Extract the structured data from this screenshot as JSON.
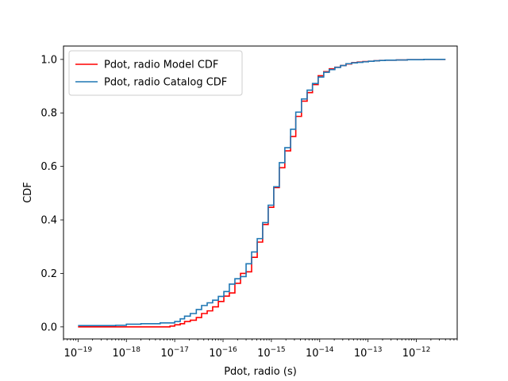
{
  "chart_data": {
    "type": "line",
    "title": "",
    "xlabel": "Pdot, radio (s)",
    "ylabel": "CDF",
    "xscale": "log",
    "xlim": [
      5e-20,
      7e-12
    ],
    "ylim": [
      -0.045,
      1.05
    ],
    "x_ticks": [
      {
        "value": 1e-19,
        "base": "10",
        "exp": "−19"
      },
      {
        "value": 1e-18,
        "base": "10",
        "exp": "−18"
      },
      {
        "value": 1e-17,
        "base": "10",
        "exp": "−17"
      },
      {
        "value": 1e-16,
        "base": "10",
        "exp": "−16"
      },
      {
        "value": 1e-15,
        "base": "10",
        "exp": "−15"
      },
      {
        "value": 1e-14,
        "base": "10",
        "exp": "−14"
      },
      {
        "value": 1e-13,
        "base": "10",
        "exp": "−13"
      },
      {
        "value": 1e-12,
        "base": "10",
        "exp": "−12"
      }
    ],
    "y_ticks": [
      {
        "value": 0.0,
        "label": "0.0"
      },
      {
        "value": 0.2,
        "label": "0.2"
      },
      {
        "value": 0.4,
        "label": "0.4"
      },
      {
        "value": 0.6,
        "label": "0.6"
      },
      {
        "value": 0.8,
        "label": "0.8"
      },
      {
        "value": 1.0,
        "label": "1.0"
      }
    ],
    "grid": false,
    "legend_position": "upper-left",
    "series": [
      {
        "name": "Pdot, radio Model CDF",
        "color": "#ff0000",
        "step": "post",
        "x": [
          1e-19,
          8e-18,
          1e-17,
          1.3e-17,
          1.6e-17,
          2.1e-17,
          2.8e-17,
          3.6e-17,
          4.7e-17,
          6.1e-17,
          8e-17,
          1.04e-16,
          1.35e-16,
          1.76e-16,
          2.3e-16,
          3e-16,
          3.9e-16,
          5.1e-16,
          6.6e-16,
          8.6e-16,
          1.12e-15,
          1.46e-15,
          1.9e-15,
          2.5e-15,
          3.2e-15,
          4.2e-15,
          5.5e-15,
          7.1e-15,
          9.3e-15,
          1.21e-14,
          1.58e-14,
          2.06e-14,
          2.7e-14,
          3.5e-14,
          4.6e-14,
          6e-14,
          7.8e-14,
          1.02e-13,
          1.33e-13,
          1.73e-13,
          2.26e-13,
          2.95e-13,
          3.84e-13,
          5e-13,
          6.5e-13,
          8.5e-13,
          1.1e-12,
          1.44e-12,
          1.9e-12,
          2.5e-12,
          4e-12
        ],
        "y": [
          0.0,
          0.003,
          0.008,
          0.012,
          0.02,
          0.025,
          0.035,
          0.05,
          0.06,
          0.075,
          0.095,
          0.115,
          0.127,
          0.163,
          0.2,
          0.206,
          0.26,
          0.317,
          0.383,
          0.447,
          0.521,
          0.595,
          0.658,
          0.712,
          0.787,
          0.844,
          0.876,
          0.906,
          0.939,
          0.954,
          0.965,
          0.971,
          0.977,
          0.983,
          0.988,
          0.99,
          0.992,
          0.993,
          0.995,
          0.996,
          0.997,
          0.997,
          0.998,
          0.998,
          0.999,
          0.999,
          0.999,
          1.0,
          1.0,
          1.0,
          1.0
        ]
      },
      {
        "name": "Pdot, radio Catalog CDF",
        "color": "#1f77b4",
        "step": "post",
        "x": [
          1e-19,
          6e-19,
          1e-18,
          2e-18,
          5e-18,
          1e-17,
          1.3e-17,
          1.6e-17,
          2.1e-17,
          2.8e-17,
          3.6e-17,
          4.7e-17,
          6.1e-17,
          8e-17,
          1.04e-16,
          1.35e-16,
          1.76e-16,
          2.3e-16,
          3e-16,
          3.9e-16,
          5.1e-16,
          6.6e-16,
          8.6e-16,
          1.12e-15,
          1.46e-15,
          1.9e-15,
          2.5e-15,
          3.2e-15,
          4.2e-15,
          5.5e-15,
          7.1e-15,
          9.3e-15,
          1.21e-14,
          1.58e-14,
          2.06e-14,
          2.7e-14,
          3.5e-14,
          4.6e-14,
          6e-14,
          7.8e-14,
          1.02e-13,
          1.33e-13,
          1.73e-13,
          2.26e-13,
          2.95e-13,
          3.84e-13,
          5e-13,
          6.5e-13,
          8.5e-13,
          1.1e-12,
          1.44e-12,
          1.9e-12,
          2.5e-12,
          4e-12
        ],
        "y": [
          0.005,
          0.006,
          0.01,
          0.012,
          0.015,
          0.02,
          0.03,
          0.04,
          0.05,
          0.065,
          0.08,
          0.09,
          0.1,
          0.114,
          0.132,
          0.16,
          0.18,
          0.188,
          0.236,
          0.28,
          0.33,
          0.39,
          0.455,
          0.524,
          0.614,
          0.67,
          0.739,
          0.803,
          0.852,
          0.885,
          0.91,
          0.934,
          0.952,
          0.962,
          0.97,
          0.977,
          0.984,
          0.987,
          0.989,
          0.991,
          0.993,
          0.995,
          0.996,
          0.997,
          0.997,
          0.998,
          0.998,
          0.999,
          0.999,
          0.999,
          1.0,
          1.0,
          1.0,
          1.0
        ]
      }
    ]
  }
}
